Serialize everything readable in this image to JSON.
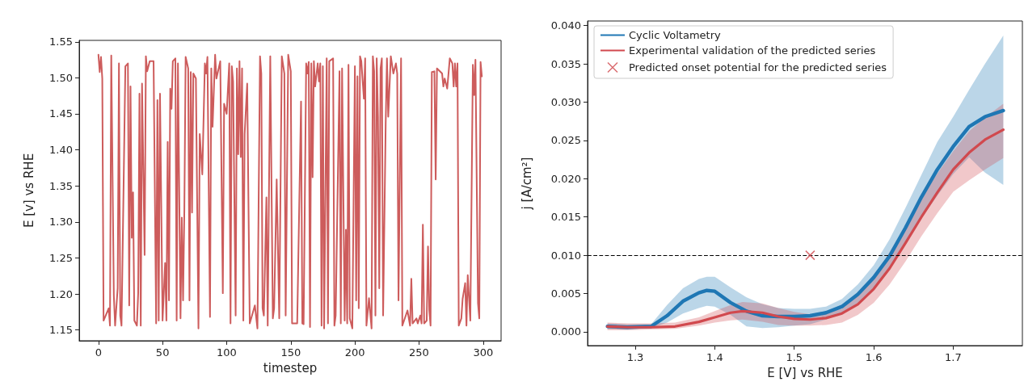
{
  "chart_data": [
    {
      "type": "line",
      "xlabel": "timestep",
      "ylabel": "E [v] vs RHE",
      "xlim": [
        -15,
        314
      ],
      "ylim": [
        1.135,
        1.552
      ],
      "xticks": [
        0,
        50,
        100,
        150,
        200,
        250,
        300
      ],
      "yticks": [
        1.15,
        {
          "value": 1.2,
          "label": "1.20"
        },
        1.25,
        {
          "value": 1.3,
          "label": "1.30"
        },
        1.35,
        {
          "value": 1.4,
          "label": "1.40"
        },
        1.45,
        {
          "value": 1.5,
          "label": "1.50"
        },
        1.55
      ],
      "series": [
        {
          "color": "#cd5c5c",
          "x": [
            0,
            1,
            2,
            3,
            4,
            8,
            9,
            10,
            12,
            13,
            15,
            16,
            17,
            18,
            21,
            23,
            24,
            25,
            26,
            27,
            28,
            30,
            31,
            32,
            33,
            34,
            36,
            37,
            38,
            40,
            43,
            45,
            46,
            47,
            48,
            50,
            52,
            53,
            54,
            55,
            56,
            57,
            58,
            60,
            61,
            62,
            64,
            65,
            66,
            67,
            68,
            70,
            71,
            72,
            73,
            74,
            76,
            78,
            79,
            81,
            83,
            84,
            85,
            87,
            88,
            89,
            91,
            92,
            95,
            97,
            98,
            100,
            102,
            103,
            104,
            105,
            107,
            108,
            109,
            110,
            111,
            112,
            113,
            114,
            116,
            118,
            122,
            124,
            126,
            127,
            128,
            129,
            131,
            132,
            134,
            136,
            137,
            139,
            141,
            143,
            145,
            146,
            148,
            150,
            151,
            155,
            158,
            159,
            160,
            162,
            163,
            164,
            165,
            166,
            167,
            168,
            169,
            171,
            172,
            173,
            174,
            175,
            176,
            178,
            179,
            180,
            183,
            184,
            185,
            188,
            189,
            190,
            192,
            193,
            194,
            195,
            196,
            198,
            200,
            201,
            202,
            203,
            204,
            205,
            207,
            208,
            209,
            211,
            213,
            214,
            215,
            216,
            217,
            218,
            219,
            220,
            221,
            222,
            224,
            225,
            226,
            228,
            230,
            232,
            233,
            234,
            236,
            237,
            241,
            243,
            244,
            245,
            248,
            249,
            251,
            252,
            253,
            254,
            256,
            257,
            258,
            259,
            260,
            262,
            263,
            264,
            268,
            269,
            270,
            272,
            274,
            276,
            277,
            278,
            279,
            280,
            281,
            283,
            284,
            286,
            287,
            288,
            290,
            292,
            293,
            294,
            296,
            297,
            298,
            299
          ],
          "values": [
            1.532,
            1.508,
            1.529,
            1.499,
            1.163,
            1.18,
            1.156,
            1.531,
            1.198,
            1.156,
            1.208,
            1.52,
            1.17,
            1.156,
            1.516,
            1.52,
            1.184,
            1.488,
            1.278,
            1.341,
            1.163,
            1.156,
            1.201,
            1.478,
            1.156,
            1.492,
            1.254,
            1.53,
            1.509,
            1.523,
            1.523,
            1.159,
            1.469,
            1.163,
            1.478,
            1.163,
            1.243,
            1.163,
            1.411,
            1.191,
            1.485,
            1.457,
            1.523,
            1.527,
            1.163,
            1.52,
            1.166,
            1.306,
            1.191,
            1.317,
            1.529,
            1.513,
            1.191,
            1.508,
            1.313,
            1.506,
            1.499,
            1.152,
            1.422,
            1.366,
            1.52,
            1.506,
            1.529,
            1.168,
            1.513,
            1.432,
            1.532,
            1.499,
            1.523,
            1.201,
            1.464,
            1.45,
            1.52,
            1.159,
            1.516,
            1.495,
            1.17,
            1.513,
            1.394,
            1.523,
            1.39,
            1.513,
            1.163,
            1.422,
            1.492,
            1.159,
            1.184,
            1.152,
            1.53,
            1.506,
            1.18,
            1.17,
            1.334,
            1.156,
            1.53,
            1.166,
            1.18,
            1.359,
            1.166,
            1.53,
            1.506,
            1.17,
            1.532,
            1.509,
            1.159,
            1.159,
            1.467,
            1.159,
            1.158,
            1.52,
            1.506,
            1.522,
            1.154,
            1.52,
            1.362,
            1.523,
            1.488,
            1.52,
            1.495,
            1.52,
            1.156,
            1.516,
            1.152,
            1.527,
            1.159,
            1.523,
            1.527,
            1.156,
            1.17,
            1.509,
            1.159,
            1.513,
            1.163,
            1.289,
            1.159,
            1.518,
            1.166,
            1.152,
            1.516,
            1.191,
            1.502,
            1.18,
            1.53,
            1.523,
            1.471,
            1.527,
            1.156,
            1.194,
            1.152,
            1.53,
            1.509,
            1.17,
            1.527,
            1.446,
            1.208,
            1.513,
            1.527,
            1.17,
            1.436,
            1.527,
            1.446,
            1.53,
            1.506,
            1.52,
            1.506,
            1.191,
            1.527,
            1.156,
            1.177,
            1.156,
            1.221,
            1.159,
            1.166,
            1.159,
            1.17,
            1.159,
            1.296,
            1.159,
            1.163,
            1.266,
            1.177,
            1.156,
            1.508,
            1.509,
            1.359,
            1.513,
            1.506,
            1.488,
            1.499,
            1.485,
            1.527,
            1.52,
            1.488,
            1.52,
            1.488,
            1.52,
            1.156,
            1.166,
            1.193,
            1.215,
            1.156,
            1.226,
            1.163,
            1.518,
            1.476,
            1.525,
            1.187,
            1.166,
            1.522,
            1.502
          ]
        }
      ]
    },
    {
      "type": "line",
      "xlabel": "E [V] vs RHE",
      "ylabel": "j [A/cm²]",
      "legend": "top left",
      "xlim": [
        1.24,
        1.787
      ],
      "ylim": [
        -0.0018,
        0.0406
      ],
      "xticks": [
        1.3,
        1.4,
        1.5,
        1.6,
        1.7
      ],
      "yticks": [
        {
          "value": 0,
          "label": "0.000"
        },
        {
          "value": 0.005,
          "label": "0.005"
        },
        {
          "value": 0.01,
          "label": "0.010"
        },
        {
          "value": 0.015,
          "label": "0.015"
        },
        {
          "value": 0.02,
          "label": "0.020"
        },
        {
          "value": 0.025,
          "label": "0.025"
        },
        {
          "value": 0.03,
          "label": "0.030"
        },
        {
          "value": 0.035,
          "label": "0.035"
        },
        {
          "value": 0.04,
          "label": "0.040"
        }
      ],
      "ref_lines": [
        {
          "axis": "y",
          "value": 0.01,
          "color": "#000000",
          "line_style": "dashed"
        }
      ],
      "series": [
        {
          "name": "Cyclic Voltametry",
          "color": "#1f77b4",
          "x": [
            1.265,
            1.29,
            1.32,
            1.34,
            1.36,
            1.38,
            1.39,
            1.4,
            1.42,
            1.44,
            1.46,
            1.48,
            1.5,
            1.52,
            1.54,
            1.56,
            1.58,
            1.6,
            1.62,
            1.64,
            1.66,
            1.68,
            1.7,
            1.72,
            1.74,
            1.763
          ],
          "values": [
            0.0007,
            0.0006,
            0.0007,
            0.0021,
            0.004,
            0.0051,
            0.0054,
            0.0053,
            0.0038,
            0.0027,
            0.0021,
            0.002,
            0.002,
            0.0021,
            0.0025,
            0.0033,
            0.0049,
            0.0071,
            0.0099,
            0.0136,
            0.0176,
            0.0212,
            0.0242,
            0.0268,
            0.0281,
            0.0289
          ],
          "lower": [
            0.0004,
            0.0003,
            0.0005,
            0.0012,
            0.0024,
            0.0031,
            0.0034,
            0.0033,
            0.0022,
            0.0007,
            0.0005,
            0.0006,
            0.0008,
            0.001,
            0.0016,
            0.0024,
            0.0038,
            0.0058,
            0.0082,
            0.0115,
            0.0148,
            0.0178,
            0.0206,
            0.0228,
            0.0208,
            0.0192
          ],
          "upper": [
            0.0011,
            0.001,
            0.001,
            0.0035,
            0.0057,
            0.0069,
            0.0072,
            0.0072,
            0.0058,
            0.0045,
            0.0036,
            0.0031,
            0.003,
            0.003,
            0.0033,
            0.0043,
            0.0062,
            0.0087,
            0.0121,
            0.0162,
            0.0205,
            0.0248,
            0.0281,
            0.0316,
            0.035,
            0.0387
          ]
        },
        {
          "name": "Experimental validation of the predicted series",
          "color": "#d1494e",
          "x": [
            1.265,
            1.29,
            1.32,
            1.35,
            1.38,
            1.4,
            1.42,
            1.435,
            1.46,
            1.48,
            1.5,
            1.52,
            1.54,
            1.56,
            1.58,
            1.6,
            1.62,
            1.64,
            1.66,
            1.68,
            1.7,
            1.72,
            1.74,
            1.763
          ],
          "values": [
            0.0007,
            0.0006,
            0.0006,
            0.0007,
            0.0013,
            0.0019,
            0.0025,
            0.0027,
            0.0025,
            0.002,
            0.0017,
            0.0016,
            0.0018,
            0.0024,
            0.0036,
            0.0056,
            0.0083,
            0.0116,
            0.015,
            0.0182,
            0.0212,
            0.0234,
            0.0251,
            0.0264
          ],
          "lower": [
            0.0002,
            0.0002,
            0.0003,
            0.0004,
            0.0008,
            0.0012,
            0.0015,
            0.0016,
            0.0013,
            0.0009,
            0.0008,
            0.0008,
            0.0009,
            0.0012,
            0.0022,
            0.0038,
            0.0062,
            0.0092,
            0.0125,
            0.0155,
            0.0183,
            0.0198,
            0.0212,
            0.0227
          ],
          "upper": [
            0.0012,
            0.0011,
            0.0011,
            0.0012,
            0.0019,
            0.0027,
            0.0035,
            0.0039,
            0.0037,
            0.0031,
            0.0026,
            0.0023,
            0.0025,
            0.003,
            0.0047,
            0.0072,
            0.0104,
            0.0138,
            0.0175,
            0.0207,
            0.0236,
            0.0262,
            0.028,
            0.0298
          ]
        },
        {
          "name": "Predicted onset potential for the predicted series",
          "type": "scatter",
          "marker": "cross",
          "color": "#d1494e",
          "x": [
            1.52
          ],
          "values": [
            0.01
          ]
        }
      ]
    }
  ]
}
